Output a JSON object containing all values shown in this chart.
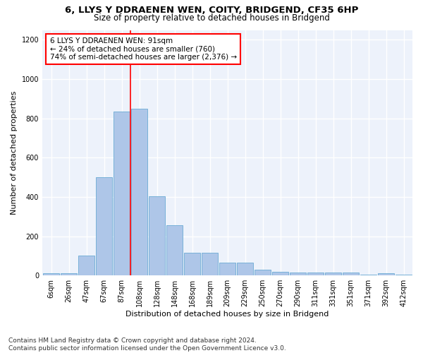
{
  "title": "6, LLYS Y DDRAENEN WEN, COITY, BRIDGEND, CF35 6HP",
  "subtitle": "Size of property relative to detached houses in Bridgend",
  "xlabel": "Distribution of detached houses by size in Bridgend",
  "ylabel": "Number of detached properties",
  "categories": [
    "6sqm",
    "26sqm",
    "47sqm",
    "67sqm",
    "87sqm",
    "108sqm",
    "128sqm",
    "148sqm",
    "168sqm",
    "189sqm",
    "209sqm",
    "229sqm",
    "250sqm",
    "270sqm",
    "290sqm",
    "311sqm",
    "331sqm",
    "351sqm",
    "371sqm",
    "392sqm",
    "412sqm"
  ],
  "values": [
    10,
    12,
    100,
    500,
    835,
    850,
    405,
    255,
    115,
    115,
    65,
    65,
    30,
    20,
    15,
    15,
    15,
    15,
    3,
    10,
    3
  ],
  "bar_color": "#aec6e8",
  "bar_edge_color": "#6aaad4",
  "annotation_box_text": "6 LLYS Y DDRAENEN WEN: 91sqm\n← 24% of detached houses are smaller (760)\n74% of semi-detached houses are larger (2,376) →",
  "annotation_box_color": "white",
  "annotation_box_edge_color": "red",
  "vline_color": "red",
  "vline_x_index": 4,
  "ylim": [
    0,
    1250
  ],
  "yticks": [
    0,
    200,
    400,
    600,
    800,
    1000,
    1200
  ],
  "background_color": "#edf2fb",
  "grid_color": "white",
  "footer_text": "Contains HM Land Registry data © Crown copyright and database right 2024.\nContains public sector information licensed under the Open Government Licence v3.0.",
  "title_fontsize": 9.5,
  "subtitle_fontsize": 8.5,
  "xlabel_fontsize": 8,
  "ylabel_fontsize": 8,
  "tick_fontsize": 7,
  "annotation_fontsize": 7.5,
  "footer_fontsize": 6.5
}
